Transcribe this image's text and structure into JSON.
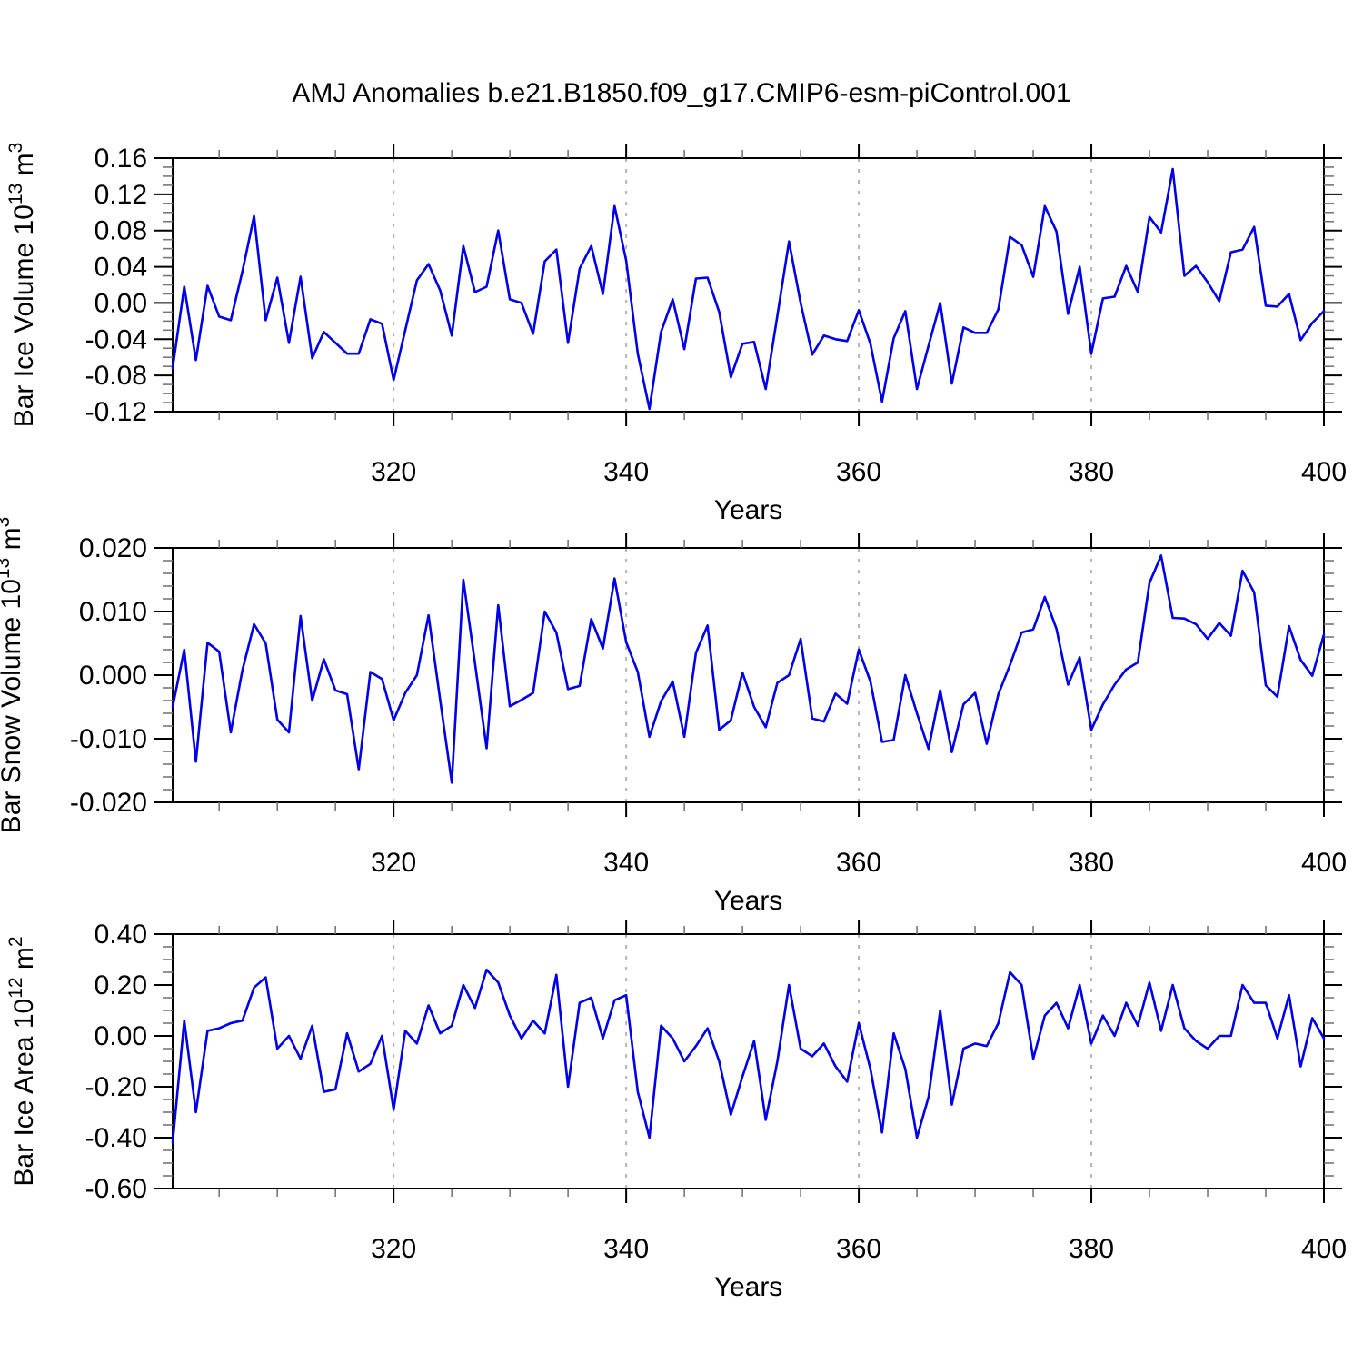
{
  "page": {
    "title": "AMJ Anomalies b.e21.B1850.f09_g17.CMIP6-esm-piControl.001"
  },
  "colors": {
    "line": "#0000e8",
    "frame": "#000000",
    "major_tick": "#000000",
    "minor_tick": "#777777",
    "gridline": "#b5b5b5",
    "text": "#000000",
    "background": "#ffffff"
  },
  "x_axis": {
    "label": "Years",
    "start": 301,
    "end": 400,
    "major_ticks": [
      320,
      340,
      360,
      380,
      400
    ],
    "minor_tick_step": 5,
    "dashed_gridlines": [
      320,
      340,
      360,
      380
    ]
  },
  "years": [
    301,
    302,
    303,
    304,
    305,
    306,
    307,
    308,
    309,
    310,
    311,
    312,
    313,
    314,
    315,
    316,
    317,
    318,
    319,
    320,
    321,
    322,
    323,
    324,
    325,
    326,
    327,
    328,
    329,
    330,
    331,
    332,
    333,
    334,
    335,
    336,
    337,
    338,
    339,
    340,
    341,
    342,
    343,
    344,
    345,
    346,
    347,
    348,
    349,
    350,
    351,
    352,
    353,
    354,
    355,
    356,
    357,
    358,
    359,
    360,
    361,
    362,
    363,
    364,
    365,
    366,
    367,
    368,
    369,
    370,
    371,
    372,
    373,
    374,
    375,
    376,
    377,
    378,
    379,
    380,
    381,
    382,
    383,
    384,
    385,
    386,
    387,
    388,
    389,
    390,
    391,
    392,
    393,
    394,
    395,
    396,
    397,
    398,
    399,
    400
  ],
  "chart_data": [
    {
      "type": "line",
      "series_name": "AMJ barents ice volume anomaly",
      "ylabel_text": "Bar Ice Volume 10^13 m^3",
      "ylabel_parts": [
        [
          "t",
          "Bar Ice Volume 10"
        ],
        [
          "s",
          "13"
        ],
        [
          "t",
          " m"
        ],
        [
          "s",
          "3"
        ]
      ],
      "xlabel": "Years",
      "ylim": [
        -0.12,
        0.16
      ],
      "ytick_values": [
        0.16,
        0.12,
        0.08,
        0.04,
        0.0,
        -0.04,
        -0.08,
        -0.12
      ],
      "ytick_labels": [
        "0.16",
        "0.12",
        "0.08",
        "0.04",
        "0.00",
        "-0.04",
        "-0.08",
        "-0.12"
      ],
      "yminor_step": 0.01,
      "grid": "dashed-vertical",
      "values": [
        -0.072,
        0.018,
        -0.063,
        0.019,
        -0.015,
        -0.019,
        0.035,
        0.096,
        -0.019,
        0.028,
        -0.044,
        0.029,
        -0.061,
        -0.032,
        -0.044,
        -0.056,
        -0.056,
        -0.018,
        -0.023,
        -0.085,
        -0.03,
        0.025,
        0.043,
        0.014,
        -0.036,
        0.063,
        0.012,
        0.018,
        0.08,
        0.004,
        0.0,
        -0.034,
        0.046,
        0.059,
        -0.044,
        0.038,
        0.063,
        0.01,
        0.107,
        0.047,
        -0.056,
        -0.117,
        -0.032,
        0.004,
        -0.051,
        0.027,
        0.028,
        -0.01,
        -0.082,
        -0.045,
        -0.043,
        -0.095,
        -0.014,
        0.068,
        0.0,
        -0.057,
        -0.036,
        -0.04,
        -0.042,
        -0.008,
        -0.045,
        -0.109,
        -0.039,
        -0.009,
        -0.095,
        -0.047,
        0.0,
        -0.089,
        -0.027,
        -0.033,
        -0.033,
        -0.007,
        0.073,
        0.064,
        0.029,
        0.107,
        0.079,
        -0.012,
        0.04,
        -0.056,
        0.005,
        0.007,
        0.041,
        0.012,
        0.095,
        0.078,
        0.148,
        0.03,
        0.041,
        0.023,
        0.002,
        0.056,
        0.059,
        0.084,
        -0.003,
        -0.004,
        0.01,
        -0.041,
        -0.022,
        -0.009
      ]
    },
    {
      "type": "line",
      "series_name": "AMJ barents snow volume anomaly",
      "ylabel_text": "Bar Snow Volume 10^13 m^3",
      "ylabel_parts": [
        [
          "t",
          "Bar Snow Volume 10"
        ],
        [
          "s",
          "13"
        ],
        [
          "t",
          " m"
        ],
        [
          "s",
          "3"
        ]
      ],
      "xlabel": "Years",
      "ylim": [
        -0.02,
        0.02
      ],
      "ytick_values": [
        0.02,
        0.01,
        0.0,
        -0.01,
        -0.02
      ],
      "ytick_labels": [
        "0.020",
        "0.010",
        "0.000",
        "-0.010",
        "-0.020"
      ],
      "yminor_step": 0.002,
      "grid": "dashed-vertical",
      "values": [
        -0.005,
        0.004,
        -0.0136,
        0.0051,
        0.0037,
        -0.009,
        0.0008,
        0.008,
        0.005,
        -0.007,
        -0.009,
        0.0093,
        -0.004,
        0.0025,
        -0.0024,
        -0.003,
        -0.0148,
        0.0005,
        -0.0006,
        -0.0071,
        -0.0028,
        0.0,
        0.0094,
        -0.0039,
        -0.0169,
        0.015,
        0.0019,
        -0.0115,
        0.011,
        -0.0049,
        -0.0039,
        -0.0028,
        0.01,
        0.0067,
        -0.0022,
        -0.0017,
        0.0088,
        0.0042,
        0.0152,
        0.0052,
        0.0005,
        -0.0097,
        -0.0041,
        -0.001,
        -0.0097,
        0.0035,
        0.0078,
        -0.0086,
        -0.0071,
        0.0004,
        -0.005,
        -0.0082,
        -0.0012,
        0.0,
        0.0057,
        -0.0068,
        -0.0073,
        -0.0029,
        -0.0045,
        0.004,
        -0.001,
        -0.0105,
        -0.0102,
        0.0,
        -0.006,
        -0.0116,
        -0.0024,
        -0.0121,
        -0.0046,
        -0.0028,
        -0.0108,
        -0.003,
        0.0016,
        0.0067,
        0.0072,
        0.0123,
        0.0073,
        -0.0015,
        0.0028,
        -0.0086,
        -0.0046,
        -0.0015,
        0.0009,
        0.002,
        0.0145,
        0.0188,
        0.009,
        0.0089,
        0.008,
        0.0057,
        0.0082,
        0.0062,
        0.0164,
        0.013,
        -0.0016,
        -0.0034,
        0.0077,
        0.0024,
        -0.0001,
        0.0064
      ]
    },
    {
      "type": "line",
      "series_name": "AMJ barents ice area anomaly",
      "ylabel_text": "Bar Ice Area 10^12 m^2",
      "ylabel_parts": [
        [
          "t",
          "Bar Ice Area 10"
        ],
        [
          "s",
          "12"
        ],
        [
          "t",
          " m"
        ],
        [
          "s",
          "2"
        ]
      ],
      "xlabel": "Years",
      "ylim": [
        -0.6,
        0.4
      ],
      "ytick_values": [
        0.4,
        0.2,
        0.0,
        -0.2,
        -0.4,
        -0.6
      ],
      "ytick_labels": [
        "0.40",
        "0.20",
        "0.00",
        "-0.20",
        "-0.40",
        "-0.60"
      ],
      "yminor_step": 0.05,
      "grid": "dashed-vertical",
      "values": [
        -0.42,
        0.06,
        -0.3,
        0.02,
        0.03,
        0.05,
        0.06,
        0.19,
        0.23,
        -0.05,
        0.0,
        -0.09,
        0.04,
        -0.22,
        -0.21,
        0.01,
        -0.14,
        -0.11,
        0.0,
        -0.29,
        0.02,
        -0.03,
        0.12,
        0.01,
        0.04,
        0.2,
        0.11,
        0.26,
        0.21,
        0.08,
        -0.01,
        0.06,
        0.01,
        0.24,
        -0.2,
        0.13,
        0.15,
        -0.01,
        0.14,
        0.16,
        -0.22,
        -0.4,
        0.04,
        -0.01,
        -0.1,
        -0.04,
        0.03,
        -0.1,
        -0.31,
        -0.16,
        -0.02,
        -0.33,
        -0.1,
        0.2,
        -0.05,
        -0.08,
        -0.03,
        -0.12,
        -0.18,
        0.05,
        -0.13,
        -0.38,
        0.01,
        -0.13,
        -0.4,
        -0.24,
        0.1,
        -0.27,
        -0.05,
        -0.03,
        -0.04,
        0.05,
        0.25,
        0.2,
        -0.09,
        0.08,
        0.13,
        0.03,
        0.2,
        -0.03,
        0.08,
        0.0,
        0.13,
        0.04,
        0.21,
        0.02,
        0.2,
        0.03,
        -0.02,
        -0.05,
        0.0,
        0.0,
        0.2,
        0.13,
        0.13,
        -0.01,
        0.16,
        -0.12,
        0.07,
        -0.01
      ]
    }
  ]
}
